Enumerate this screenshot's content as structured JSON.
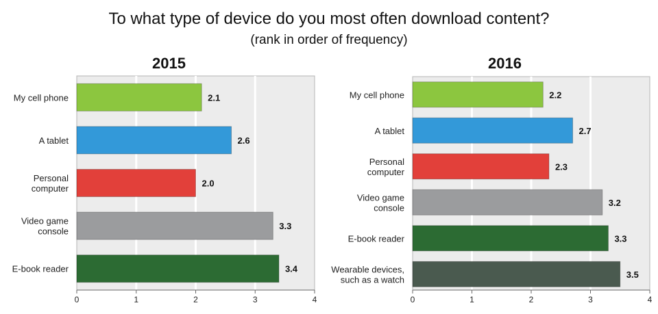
{
  "title": "To what type of device do you most often download content?",
  "subtitle": "(rank in order of frequency)",
  "chart_data": [
    {
      "type": "bar",
      "orientation": "horizontal",
      "title": "2015",
      "categories": [
        [
          "My cell phone"
        ],
        [
          "A tablet"
        ],
        [
          "Personal",
          "computer"
        ],
        [
          "Video game",
          "console"
        ],
        [
          "E-book reader"
        ]
      ],
      "values": [
        2.1,
        2.6,
        2.0,
        3.3,
        3.4
      ],
      "value_labels": [
        "2.1",
        "2.6",
        "2.0",
        "3.3",
        "3.4"
      ],
      "colors": [
        "#8cc63f",
        "#3399d9",
        "#e2403a",
        "#9b9c9e",
        "#2c6b33"
      ],
      "xlim": [
        0,
        4
      ],
      "xticks": [
        "0",
        "1",
        "2",
        "3",
        "4"
      ],
      "grid": true
    },
    {
      "type": "bar",
      "orientation": "horizontal",
      "title": "2016",
      "categories": [
        [
          "My cell phone"
        ],
        [
          "A tablet"
        ],
        [
          "Personal",
          "computer"
        ],
        [
          "Video game",
          "console"
        ],
        [
          "E-book reader"
        ],
        [
          "Wearable devices,",
          "such as a watch"
        ]
      ],
      "values": [
        2.2,
        2.7,
        2.3,
        3.2,
        3.3,
        3.5
      ],
      "value_labels": [
        "2.2",
        "2.7",
        "2.3",
        "3.2",
        "3.3",
        "3.5"
      ],
      "colors": [
        "#8cc63f",
        "#3399d9",
        "#e2403a",
        "#9b9c9e",
        "#2c6b33",
        "#4a5a4f"
      ],
      "xlim": [
        0,
        4
      ],
      "xticks": [
        "0",
        "1",
        "2",
        "3",
        "4"
      ],
      "grid": true
    }
  ]
}
